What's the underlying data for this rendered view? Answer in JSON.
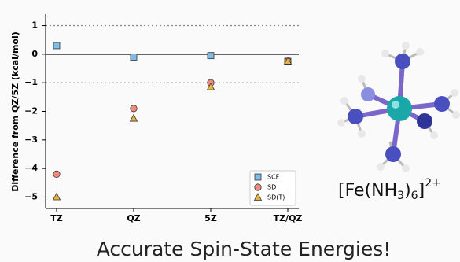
{
  "chart_data": {
    "type": "scatter",
    "ylabel": "Difference from QZ/5Z (kcal/mol)",
    "categories": [
      "TZ",
      "QZ",
      "5Z",
      "TZ/QZ"
    ],
    "series": [
      {
        "name": "SCF",
        "color": "#7fbde8",
        "marker": "square",
        "values": [
          0.3,
          -0.1,
          -0.05,
          -0.25
        ]
      },
      {
        "name": "SD",
        "color": "#f28a80",
        "marker": "circle",
        "values": [
          -4.2,
          -1.9,
          -1.0,
          -0.25
        ]
      },
      {
        "name": "SD(T)",
        "color": "#e6b43a",
        "marker": "triangle",
        "values": [
          -5.0,
          -2.25,
          -1.15,
          -0.25
        ]
      }
    ],
    "ylim": [
      -5.4,
      1.4
    ],
    "yticks": [
      {
        "value": -5,
        "label": "−5"
      },
      {
        "value": -4,
        "label": "−4"
      },
      {
        "value": -3,
        "label": "−3"
      },
      {
        "value": -2,
        "label": "−2"
      },
      {
        "value": -1,
        "label": "−1"
      },
      0,
      1
    ],
    "hlines": [
      {
        "value": 0,
        "style": "solid"
      },
      {
        "value": 1,
        "style": "dotted"
      },
      {
        "value": -1,
        "style": "dotted"
      }
    ],
    "legend": "lower right"
  },
  "molecule": {
    "formula": [
      "[Fe(NH",
      "3",
      ")",
      "6",
      "]",
      "2+"
    ]
  },
  "caption": "Accurate Spin-State Energies!"
}
